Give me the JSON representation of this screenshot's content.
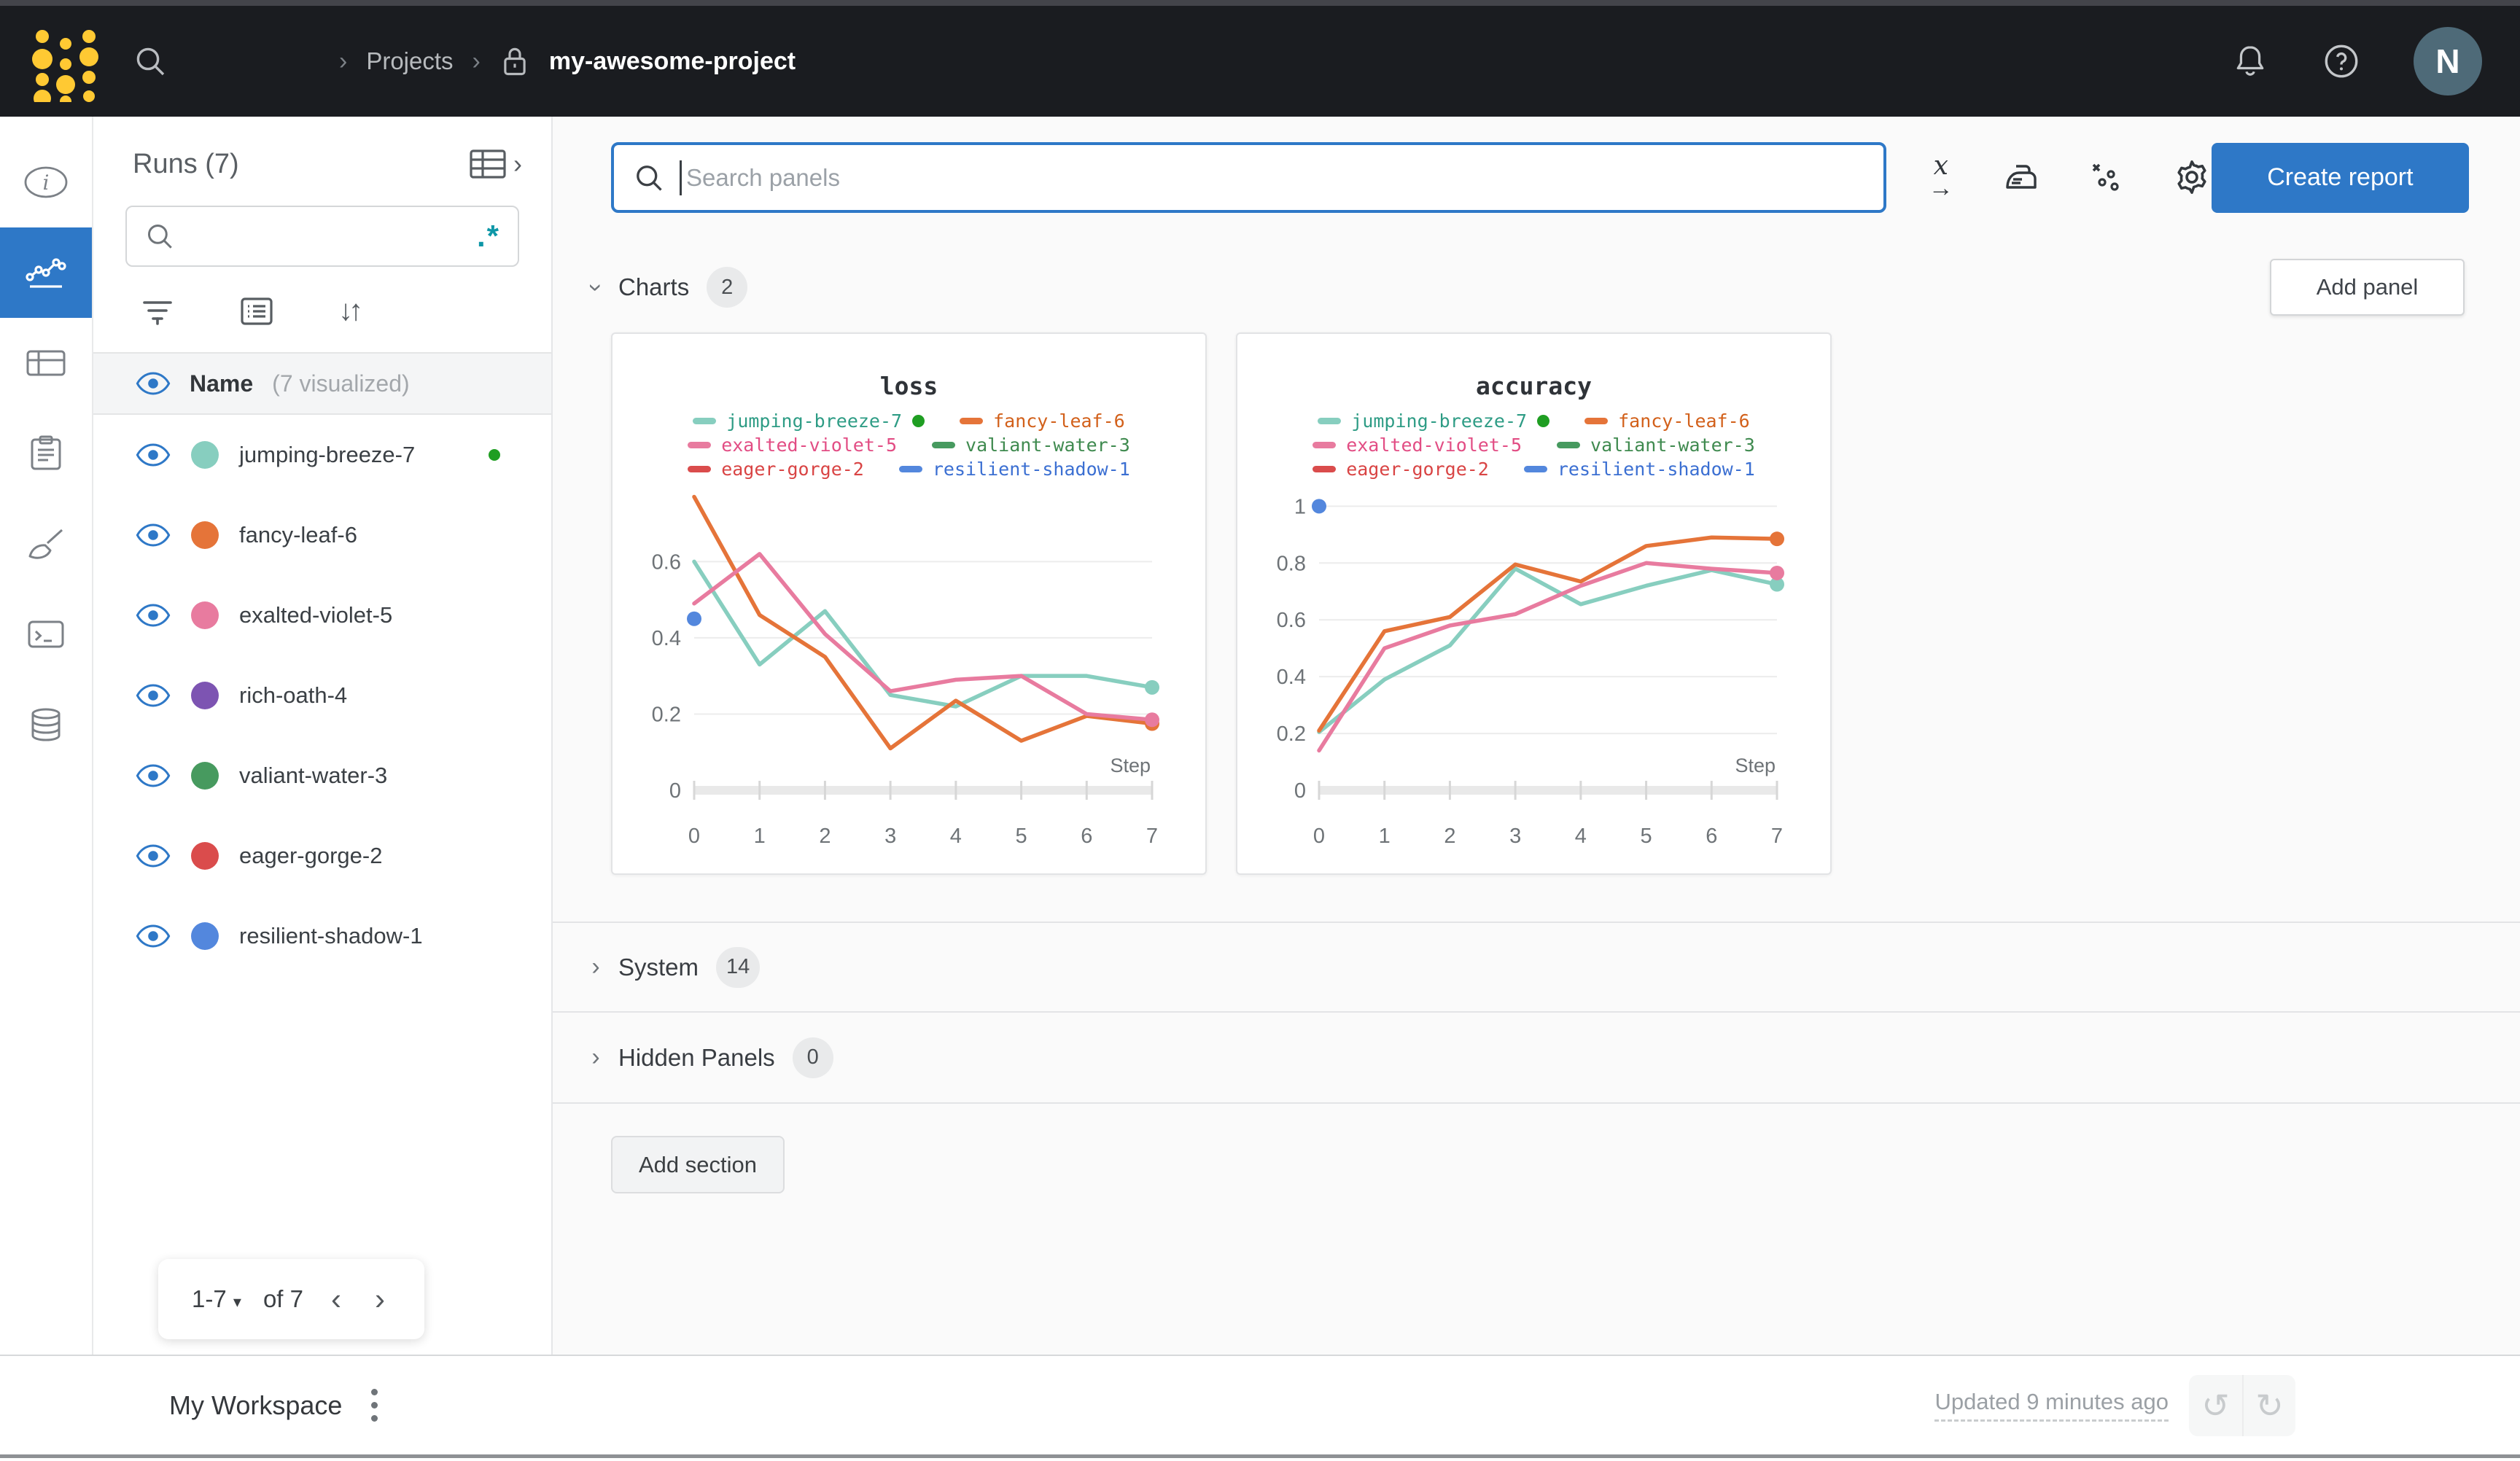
{
  "navbar": {
    "breadcrumb": {
      "separator": "›",
      "projects": "Projects",
      "project_name": "my-awesome-project"
    },
    "avatar_initial": "N"
  },
  "icon_rail": {
    "items": [
      "overview",
      "workspace-charts",
      "runs-table",
      "reports",
      "sweeps",
      "logs",
      "artifacts"
    ],
    "active_index": 1
  },
  "runs_panel": {
    "title": "Runs (7)",
    "regex_icon": ".*",
    "search_value": "",
    "header": {
      "name_label": "Name",
      "visualized_label": "(7 visualized)"
    },
    "runs": [
      {
        "name": "jumping-breeze-7",
        "color": "#87CEBF",
        "running": true
      },
      {
        "name": "fancy-leaf-6",
        "color": "#E57439",
        "running": false
      },
      {
        "name": "exalted-violet-5",
        "color": "#E87B9F",
        "running": false
      },
      {
        "name": "rich-oath-4",
        "color": "#7D54B2",
        "running": false
      },
      {
        "name": "valiant-water-3",
        "color": "#479A5F",
        "running": false
      },
      {
        "name": "eager-gorge-2",
        "color": "#DA4C4C",
        "running": false
      },
      {
        "name": "resilient-shadow-1",
        "color": "#5387DD",
        "running": false
      }
    ],
    "pagination": {
      "range": "1-7",
      "of": "of 7",
      "prev": "‹",
      "next": "›",
      "caret": "▾"
    }
  },
  "main": {
    "toolbar": {
      "search_placeholder": "Search panels",
      "create_report": "Create report"
    },
    "sections": {
      "charts": {
        "label": "Charts",
        "count": "2",
        "add_panel": "Add panel"
      },
      "system": {
        "label": "System",
        "count": "14"
      },
      "hidden": {
        "label": "Hidden Panels",
        "count": "0"
      }
    },
    "add_section": "Add section"
  },
  "footer": {
    "workspace": "My Workspace",
    "updated": "Updated 9 minutes ago"
  },
  "colors": {
    "accent_blue": "#2e78c7",
    "navbar_bg": "#1a1c20",
    "logo_yellow": "#ffc933",
    "running_green": "#1f9e22",
    "regex_teal": "#0e97a7"
  },
  "chart_data": [
    {
      "type": "line",
      "title": "loss",
      "xlabel": "Step",
      "xticks": [
        0,
        1,
        2,
        3,
        4,
        5,
        6,
        7
      ],
      "yticks": [
        0,
        0.2,
        0.4,
        0.6
      ],
      "ylim": [
        0,
        0.79
      ],
      "grid": true,
      "legend": [
        {
          "name": "jumping-breeze-7",
          "swatch": "#87CEBF",
          "text": "#2e9c85",
          "running_dot": true
        },
        {
          "name": "fancy-leaf-6",
          "swatch": "#E57439",
          "text": "#d2601a",
          "running_dot": false
        },
        {
          "name": "exalted-violet-5",
          "swatch": "#E87B9F",
          "text": "#e24d84",
          "running_dot": false
        },
        {
          "name": "valiant-water-3",
          "swatch": "#479A5F",
          "text": "#3f8a4f",
          "running_dot": false
        },
        {
          "name": "eager-gorge-2",
          "swatch": "#DA4C4C",
          "text": "#d94444",
          "running_dot": false
        },
        {
          "name": "resilient-shadow-1",
          "swatch": "#5387DD",
          "text": "#3b6fd2",
          "running_dot": false
        }
      ],
      "series": [
        {
          "name": "jumping-breeze-7",
          "color": "#87CEBF",
          "values": [
            0.6,
            0.33,
            0.47,
            0.25,
            0.22,
            0.3,
            0.3,
            0.27
          ],
          "end_dot": true
        },
        {
          "name": "fancy-leaf-6",
          "color": "#E57439",
          "values": [
            0.77,
            0.46,
            0.35,
            0.11,
            0.235,
            0.13,
            0.195,
            0.175
          ],
          "end_dot": true
        },
        {
          "name": "exalted-violet-5",
          "color": "#E87B9F",
          "values": [
            0.49,
            0.62,
            0.41,
            0.26,
            0.29,
            0.3,
            0.2,
            0.185
          ],
          "end_dot": true
        },
        {
          "name": "resilient-shadow-1",
          "color": "#5387DD",
          "values": [
            0.45
          ],
          "single_point": true
        }
      ]
    },
    {
      "type": "line",
      "title": "accuracy",
      "xlabel": "Step",
      "xticks": [
        0,
        1,
        2,
        3,
        4,
        5,
        6,
        7
      ],
      "yticks": [
        0,
        0.2,
        0.4,
        0.6,
        0.8,
        1
      ],
      "ylim": [
        0,
        1.06
      ],
      "grid": true,
      "legend": [
        {
          "name": "jumping-breeze-7",
          "swatch": "#87CEBF",
          "text": "#2e9c85",
          "running_dot": true
        },
        {
          "name": "fancy-leaf-6",
          "swatch": "#E57439",
          "text": "#d2601a",
          "running_dot": false
        },
        {
          "name": "exalted-violet-5",
          "swatch": "#E87B9F",
          "text": "#e24d84",
          "running_dot": false
        },
        {
          "name": "valiant-water-3",
          "swatch": "#479A5F",
          "text": "#3f8a4f",
          "running_dot": false
        },
        {
          "name": "eager-gorge-2",
          "swatch": "#DA4C4C",
          "text": "#d94444",
          "running_dot": false
        },
        {
          "name": "resilient-shadow-1",
          "swatch": "#5387DD",
          "text": "#3b6fd2",
          "running_dot": false
        }
      ],
      "series": [
        {
          "name": "jumping-breeze-7",
          "color": "#87CEBF",
          "values": [
            0.205,
            0.39,
            0.51,
            0.78,
            0.655,
            0.72,
            0.775,
            0.725
          ],
          "end_dot": true
        },
        {
          "name": "fancy-leaf-6",
          "color": "#E57439",
          "values": [
            0.21,
            0.56,
            0.61,
            0.795,
            0.735,
            0.86,
            0.89,
            0.885
          ],
          "end_dot": true
        },
        {
          "name": "exalted-violet-5",
          "color": "#E87B9F",
          "values": [
            0.14,
            0.5,
            0.58,
            0.62,
            0.72,
            0.8,
            0.78,
            0.765
          ],
          "end_dot": true
        },
        {
          "name": "resilient-shadow-1",
          "color": "#5387DD",
          "values": [
            1.0
          ],
          "single_point": true
        }
      ]
    }
  ]
}
